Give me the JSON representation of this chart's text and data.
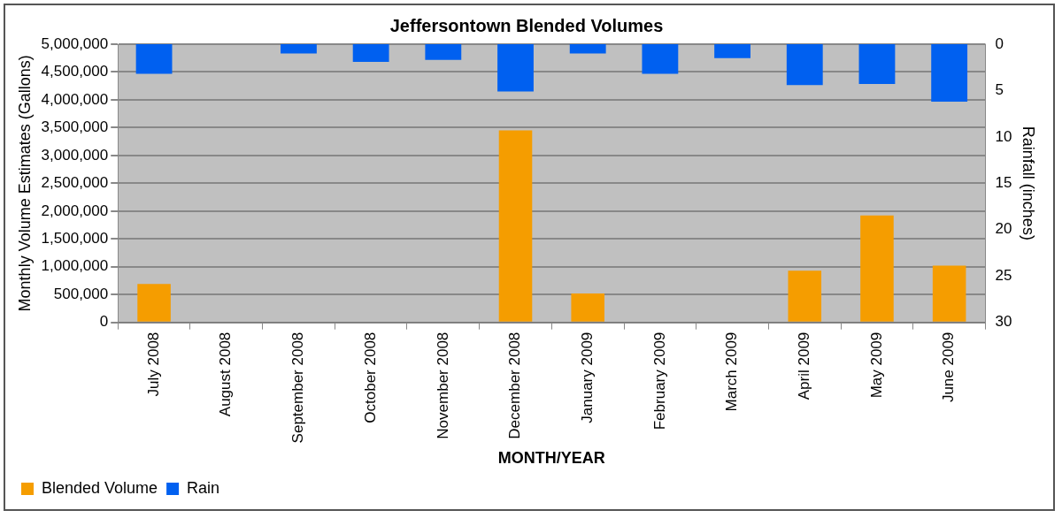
{
  "chart_data": {
    "type": "bar",
    "title": "Jeffersontown Blended Volumes",
    "xlabel": "MONTH/YEAR",
    "ylabel": "Monthly Volume Estimates (Gallons)",
    "y2label": "Rainfall (inches)",
    "categories": [
      "July 2008",
      "August 2008",
      "September 2008",
      "October 2008",
      "November 2008",
      "December 2008",
      "January 2009",
      "February 2009",
      "March 2009",
      "April 2009",
      "May 2009",
      "June 2009"
    ],
    "series": [
      {
        "name": "Blended Volume",
        "color": "#f59d00",
        "values": [
          690000,
          null,
          null,
          null,
          null,
          3450000,
          520000,
          null,
          null,
          930000,
          1920000,
          1020000
        ]
      },
      {
        "name": "Rain",
        "color": "#0060f0",
        "axis": "y2",
        "values": [
          3.2,
          0,
          1.0,
          1.9,
          1.7,
          5.1,
          1.0,
          3.2,
          1.5,
          4.4,
          4.3,
          6.2
        ]
      }
    ],
    "ylim": [
      0,
      5000000
    ],
    "yticks": [
      0,
      {
        "value": 500000,
        "label": "500,000"
      },
      {
        "value": 1000000,
        "label": "1,000,000"
      },
      {
        "value": 1500000,
        "label": "1,500,000"
      },
      {
        "value": 2000000,
        "label": "2,000,000"
      },
      {
        "value": 2500000,
        "label": "2,500,000"
      },
      {
        "value": 3000000,
        "label": "3,000,000"
      },
      {
        "value": 3500000,
        "label": "3,500,000"
      },
      {
        "value": 4000000,
        "label": "4,000,000"
      },
      {
        "value": 4500000,
        "label": "4,500,000"
      },
      {
        "value": 5000000,
        "label": "5,000,000"
      }
    ],
    "y2lim": [
      30,
      0
    ],
    "y2ticks": [
      0,
      5,
      10,
      15,
      20,
      25,
      30
    ],
    "grid": "y",
    "legend": "bottom left"
  }
}
